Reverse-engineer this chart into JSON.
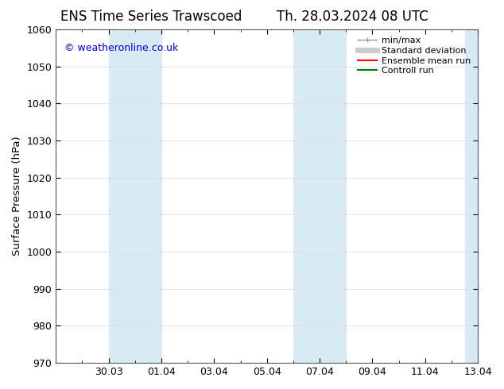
{
  "title_left": "ENS Time Series Trawscoed",
  "title_right": "Th. 28.03.2024 08 UTC",
  "ylabel": "Surface Pressure (hPa)",
  "ylim": [
    970,
    1060
  ],
  "ytick_step": 10,
  "xlim_start": 0,
  "xlim_end": 16,
  "xtick_labels": [
    "30.03",
    "01.04",
    "03.04",
    "05.04",
    "07.04",
    "09.04",
    "11.04",
    "13.04"
  ],
  "xtick_positions": [
    2,
    4,
    6,
    8,
    10,
    12,
    14,
    16
  ],
  "copyright_text": "© weatheronline.co.uk",
  "copyright_color": "#0000cc",
  "shaded_bands": [
    {
      "xmin": 2.0,
      "xmax": 4.0,
      "color": "#daeaf5",
      "alpha": 1.0
    },
    {
      "xmin": 9.0,
      "xmax": 11.0,
      "color": "#daeaf5",
      "alpha": 1.0
    },
    {
      "xmin": 15.5,
      "xmax": 16.0,
      "color": "#daeaf5",
      "alpha": 1.0
    }
  ],
  "legend_entries": [
    {
      "label": "min/max",
      "color": "#999999",
      "lw": 1.0
    },
    {
      "label": "Standard deviation",
      "color": "#cccccc",
      "lw": 5
    },
    {
      "label": "Ensemble mean run",
      "color": "#ff0000",
      "lw": 1.5
    },
    {
      "label": "Controll run",
      "color": "#007700",
      "lw": 1.5
    }
  ],
  "bg_color": "#ffffff",
  "plot_bg_color": "#ffffff",
  "spine_color": "#555555",
  "grid_color": "#dddddd",
  "title_fontsize": 12,
  "tick_fontsize": 9,
  "legend_fontsize": 8
}
